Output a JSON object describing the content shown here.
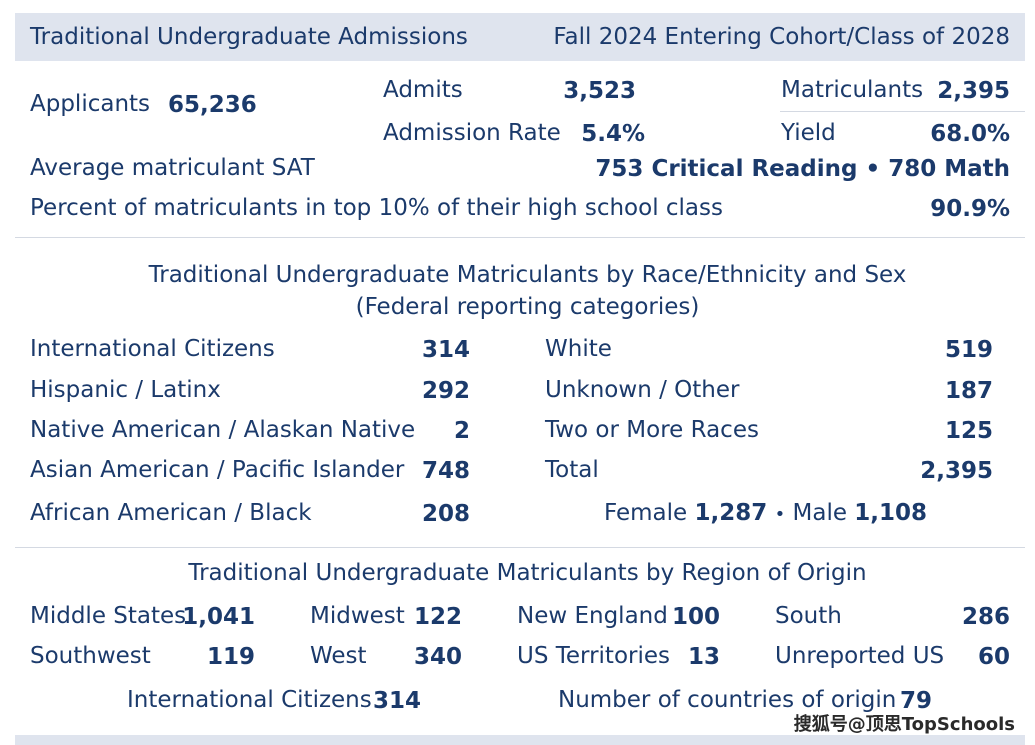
{
  "header": {
    "title": "Traditional Undergraduate Admissions",
    "cohort": "Fall 2024 Entering Cohort/Class of 2028"
  },
  "summary": {
    "applicants_label": "Applicants",
    "applicants_value": "65,236",
    "admits_label": "Admits",
    "admits_value": "3,523",
    "matriculants_label": "Matriculants",
    "matriculants_value": "2,395",
    "admission_rate_label": "Admission Rate",
    "admission_rate_value": "5.4%",
    "yield_label": "Yield",
    "yield_value": "68.0%",
    "sat_label": "Average matriculant SAT",
    "sat_value": "753 Critical Reading • 780 Math",
    "top10_label": "Percent of matriculants in top 10% of their high school class",
    "top10_value": "90.9%"
  },
  "race": {
    "title": "Traditional Undergraduate Matriculants by Race/Ethnicity and Sex",
    "subtitle": "(Federal reporting categories)",
    "left": [
      {
        "label": "International Citizens",
        "value": "314"
      },
      {
        "label": "Hispanic / Latinx",
        "value": "292"
      },
      {
        "label": "Native American / Alaskan Native",
        "value": "2"
      },
      {
        "label": "Asian American / Pacific Islander",
        "value": "748"
      },
      {
        "label": "African American / Black",
        "value": "208"
      }
    ],
    "right": [
      {
        "label": "White",
        "value": "519"
      },
      {
        "label": "Unknown / Other",
        "value": "187"
      },
      {
        "label": "Two or More Races",
        "value": "125"
      },
      {
        "label": "Total",
        "value": "2,395"
      }
    ],
    "sex": {
      "female_label": "Female",
      "female_value": "1,287",
      "separator": "•",
      "male_label": "Male",
      "male_value": "1,108"
    }
  },
  "region": {
    "title": "Traditional Undergraduate Matriculants by Region of Origin",
    "items": [
      {
        "label": "Middle States",
        "value": "1,041"
      },
      {
        "label": "Midwest",
        "value": "122"
      },
      {
        "label": "New England",
        "value": "100"
      },
      {
        "label": "South",
        "value": "286"
      },
      {
        "label": "Southwest",
        "value": "119"
      },
      {
        "label": "West",
        "value": "340"
      },
      {
        "label": "US Territories",
        "value": "13"
      },
      {
        "label": "Unreported US",
        "value": "60"
      }
    ],
    "international_label": "International Citizens",
    "international_value": "314",
    "countries_label": "Number of countries of origin",
    "countries_value": "79"
  },
  "watermark": "搜狐号@顶思TopSchools",
  "colors": {
    "text": "#1b3a6b",
    "header_band": "#dfe4ee",
    "rule": "#d4d9e2"
  }
}
